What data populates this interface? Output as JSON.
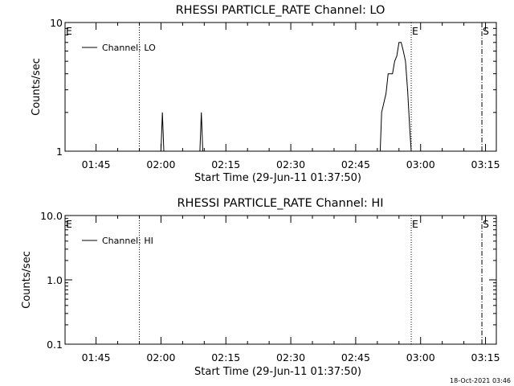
{
  "chart_data": [
    {
      "type": "line",
      "title": "RHESSI PARTICLE_RATE Channel: LO",
      "xlabel": "Start Time (29-Jun-11 01:37:50)",
      "ylabel": "Counts/sec",
      "yscale": "log",
      "ylim": [
        1,
        10
      ],
      "ytick_labels": [
        "1",
        "10"
      ],
      "xtick_labels": [
        "01:45",
        "02:00",
        "02:15",
        "02:30",
        "02:45",
        "03:00",
        "03:15"
      ],
      "grid": false,
      "legend": {
        "position": "top-left",
        "entries": [
          "Channel: LO"
        ]
      },
      "markers": [
        {
          "label": "E",
          "time": "01:37:50",
          "style": "none"
        },
        {
          "label": "",
          "time": "01:55:00",
          "style": "dotted"
        },
        {
          "label": "E",
          "time": "02:57:50",
          "style": "dotted"
        },
        {
          "label": "S",
          "time": "03:14:10",
          "style": "dash-dot"
        }
      ],
      "series": [
        {
          "name": "Channel: LO",
          "points": [
            [
              "01:37:50",
              1
            ],
            [
              "02:00:00",
              1
            ],
            [
              "02:00:20",
              2
            ],
            [
              "02:00:40",
              1
            ],
            [
              "02:09:00",
              1
            ],
            [
              "02:09:20",
              2
            ],
            [
              "02:09:40",
              1
            ],
            [
              "02:50:40",
              1
            ],
            [
              "02:51:00",
              2
            ],
            [
              "02:52:00",
              2.8
            ],
            [
              "02:52:30",
              4
            ],
            [
              "02:53:30",
              4
            ],
            [
              "02:54:00",
              5
            ],
            [
              "02:54:30",
              5.5
            ],
            [
              "02:55:00",
              7
            ],
            [
              "02:55:30",
              7
            ],
            [
              "02:56:00",
              6
            ],
            [
              "02:56:30",
              5
            ],
            [
              "02:57:00",
              3
            ],
            [
              "02:57:30",
              1.5
            ],
            [
              "02:57:50",
              1
            ],
            [
              "03:15:30",
              1
            ]
          ]
        }
      ]
    },
    {
      "type": "line",
      "title": "RHESSI PARTICLE_RATE Channel: HI",
      "xlabel": "Start Time (29-Jun-11 01:37:50)",
      "ylabel": "Counts/sec",
      "yscale": "log",
      "ylim": [
        0.1,
        10
      ],
      "ytick_labels": [
        "0.1",
        "1.0",
        "10.0"
      ],
      "xtick_labels": [
        "01:45",
        "02:00",
        "02:15",
        "02:30",
        "02:45",
        "03:00",
        "03:15"
      ],
      "grid": false,
      "legend": {
        "position": "top-left",
        "entries": [
          "Channel: HI"
        ]
      },
      "markers": [
        {
          "label": "E",
          "time": "01:37:50",
          "style": "none"
        },
        {
          "label": "",
          "time": "01:55:00",
          "style": "dotted"
        },
        {
          "label": "E",
          "time": "02:57:50",
          "style": "dotted"
        },
        {
          "label": "S",
          "time": "03:14:10",
          "style": "dash-dot"
        }
      ],
      "series": [
        {
          "name": "Channel: HI",
          "points": []
        }
      ]
    }
  ],
  "footer": {
    "date_stamp": "18-Oct-2021 03:46"
  }
}
